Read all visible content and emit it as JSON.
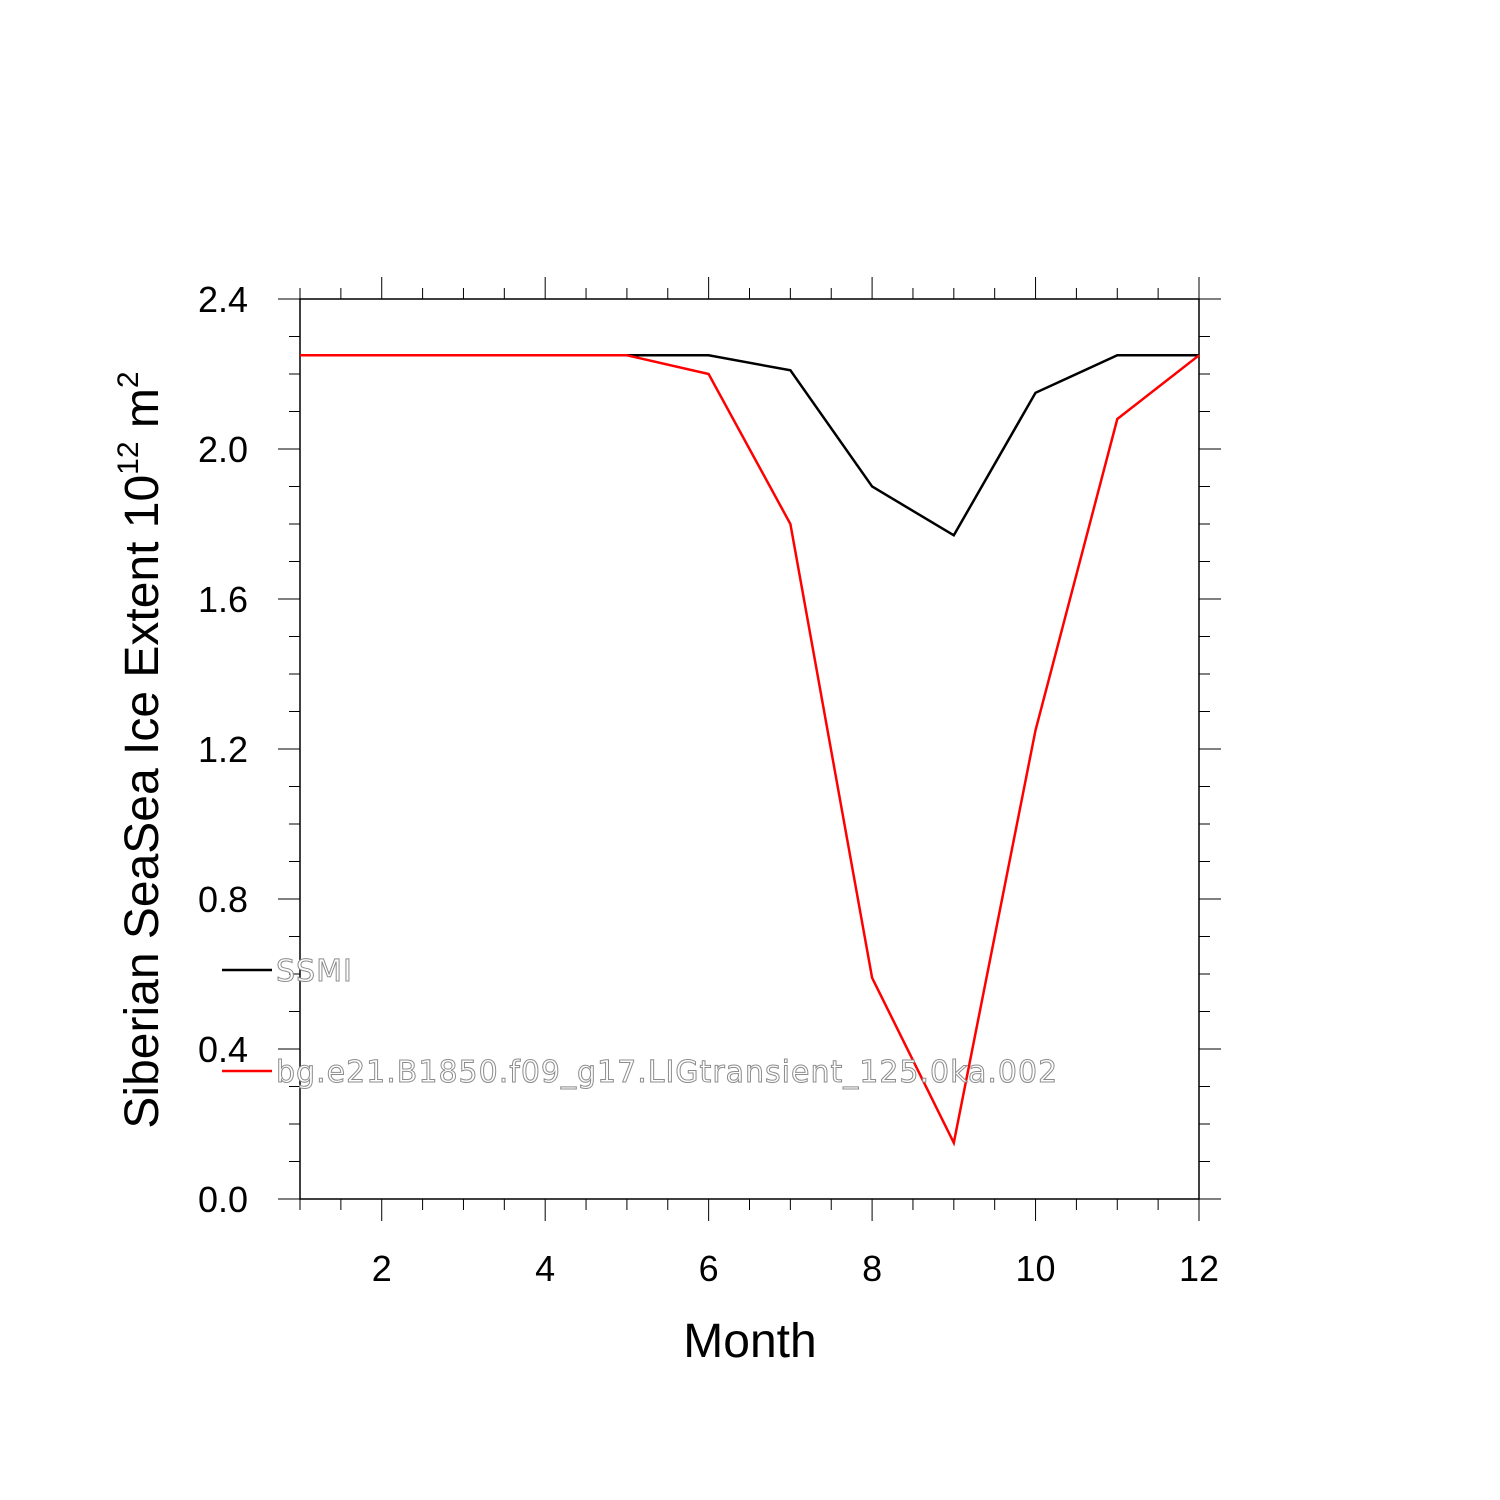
{
  "chart_data": {
    "type": "line",
    "title": "",
    "xlabel": "Month",
    "ylabel": "Siberian SeaSea Ice Extent 10",
    "ylabel_exponent": "12",
    "ylabel_unit": " m",
    "ylabel_unit_exponent": "2",
    "xlim": [
      1,
      12
    ],
    "ylim": [
      0.0,
      2.4
    ],
    "x_ticks": [
      2,
      4,
      6,
      8,
      10,
      12
    ],
    "x_tick_labels": [
      "2",
      "4",
      "6",
      "8",
      "10",
      "12"
    ],
    "y_ticks": [
      0.0,
      0.4,
      0.8,
      1.2,
      1.6,
      2.0,
      2.4
    ],
    "y_tick_labels": [
      "0.0",
      "0.4",
      "0.8",
      "1.2",
      "1.6",
      "2.0",
      "2.4"
    ],
    "grid": false,
    "legend_position": "lower-left",
    "x": [
      1,
      2,
      3,
      4,
      5,
      6,
      7,
      8,
      9,
      10,
      11,
      12
    ],
    "series": [
      {
        "name": "SSMI",
        "color": "#000000",
        "values": [
          2.25,
          2.25,
          2.25,
          2.25,
          2.25,
          2.25,
          2.21,
          1.9,
          1.77,
          2.15,
          2.25,
          2.25
        ]
      },
      {
        "name": "bg.e21.B1850.f09_g17.LIGtransient_125.0ka.002",
        "color": "#ff0000",
        "values": [
          2.25,
          2.25,
          2.25,
          2.25,
          2.25,
          2.2,
          1.8,
          0.59,
          0.15,
          1.25,
          2.08,
          2.25
        ]
      }
    ]
  }
}
